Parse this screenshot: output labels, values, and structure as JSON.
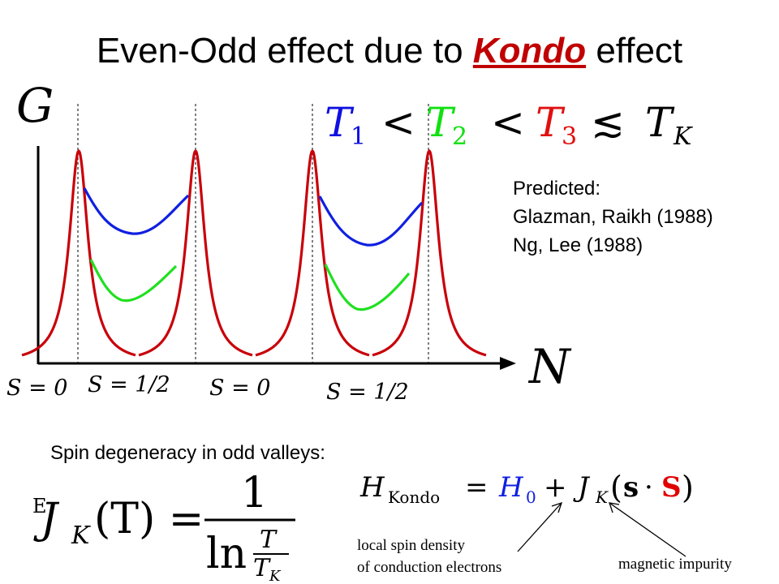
{
  "title": {
    "prefix": "Even-Odd effect due to ",
    "highlight": "Kondo",
    "suffix": " effect"
  },
  "axis": {
    "y_label": "G",
    "x_label": "N"
  },
  "temperature_relation": {
    "T1": "T",
    "T1_sub": "1",
    "T2": "T",
    "T2_sub": "2",
    "T3": "T",
    "T3_sub": "3",
    "TK": "T",
    "TK_sub": "K",
    "lt": "<",
    "lesssim": "≲",
    "colors": {
      "T1": "#1010e0",
      "T2": "#10e010",
      "T3": "#e01010",
      "TK": "#000000"
    }
  },
  "spin_labels": [
    "S = 0",
    "S = 1/2",
    "S = 0",
    "S = 1/2"
  ],
  "predicted": {
    "heading": "Predicted:",
    "refs": [
      "Glazman, Raikh (1988)",
      "Ng, Lee (1988)"
    ]
  },
  "spin_degeneracy_text": "Spin degeneracy in odd valleys:",
  "hamiltonian": {
    "lhs": "H",
    "lhs_sub": "Kondo",
    "eq": "=",
    "h0": "H",
    "h0_sub": "0",
    "plus": "+",
    "jk": "J",
    "jk_sub": "K",
    "s_small": "s",
    "dot": "·",
    "s_big": "S"
  },
  "jk_formula": {
    "lhs": "J",
    "lhs_sub": "K",
    "arg": "(T) =",
    "numerator": "1",
    "ln": "ln",
    "frac_num": "T",
    "frac_den": "T",
    "frac_den_sub": "K",
    "stray_char": "E"
  },
  "annotations": {
    "local_spin_line1": "local spin density",
    "local_spin_line2": "of conduction electrons",
    "magnetic_impurity": "magnetic impurity"
  },
  "colors": {
    "peaks": "#c8000a",
    "blue_curve": "#1020e0",
    "green_curve": "#20e020",
    "kondo": "#c00000",
    "s_bold": "#e00000",
    "h0": "#1020e0"
  }
}
